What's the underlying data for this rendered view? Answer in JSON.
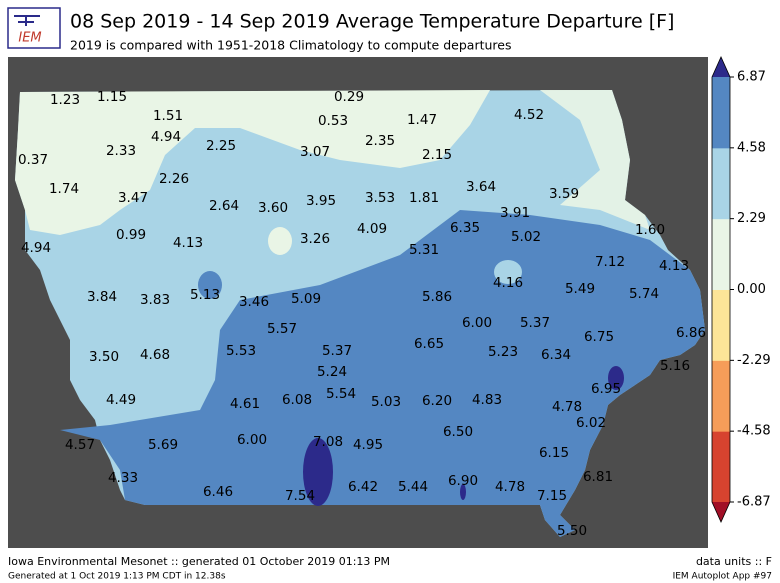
{
  "header": {
    "logo": "IEM",
    "title": "08 Sep 2019 - 14 Sep 2019 Average Temperature Departure [F]",
    "subtitle": "2019 is compared with 1951-2018 Climatology to compute departures"
  },
  "stations": {
    "values": [
      1.23,
      1.15,
      1.51,
      0.29,
      0.53,
      1.47,
      4.52,
      4.94,
      2.33,
      2.25,
      3.07,
      2.35,
      2.15,
      0.37,
      2.26,
      1.74,
      3.47,
      2.64,
      3.6,
      3.95,
      3.53,
      1.81,
      3.64,
      3.59,
      3.91,
      0.99,
      4.13,
      3.26,
      4.09,
      6.35,
      5.02,
      1.6,
      4.94,
      5.31,
      7.12,
      4.13,
      4.16,
      3.84,
      3.83,
      5.13,
      3.46,
      5.09,
      5.86,
      5.49,
      5.74,
      6,
      5.37,
      5.57,
      6.75,
      6.86,
      3.5,
      4.68,
      5.53,
      5.37,
      6.65,
      5.23,
      6.34,
      5.16,
      5.24,
      6.95,
      5.54,
      4.49,
      4.61,
      6.08,
      5.03,
      6.2,
      4.83,
      4.78,
      6.02,
      6.5,
      4.57,
      5.69,
      6,
      7.08,
      4.95,
      6.15,
      4.33,
      6.46,
      6.42,
      5.44,
      6.9,
      4.78,
      6.81,
      7.15,
      7.54,
      5.5
    ],
    "value_labels": [
      "1.23",
      "1.15",
      "1.51",
      "0.29",
      "0.53",
      "1.47",
      "4.52",
      "4.94",
      "2.33",
      "2.25",
      "3.07",
      "2.35",
      "2.15",
      "0.37",
      "2.26",
      "1.74",
      "3.47",
      "2.64",
      "3.60",
      "3.95",
      "3.53",
      "1.81",
      "3.64",
      "3.59",
      "3.91",
      "0.99",
      "4.13",
      "3.26",
      "4.09",
      "6.35",
      "5.02",
      "1.60",
      "4.94",
      "5.31",
      "7.12",
      "4.13",
      "4.16",
      "3.84",
      "3.83",
      "5.13",
      "3.46",
      "5.09",
      "5.86",
      "5.49",
      "5.74",
      "6.00",
      "5.37",
      "5.57",
      "6.75",
      "6.86",
      "3.50",
      "4.68",
      "5.53",
      "5.37",
      "6.65",
      "5.23",
      "6.34",
      "5.16",
      "5.24",
      "6.95",
      "5.54",
      "4.49",
      "4.61",
      "6.08",
      "5.03",
      "6.20",
      "4.83",
      "4.78",
      "6.02",
      "6.50",
      "4.57",
      "5.69",
      "6.00",
      "7.08",
      "4.95",
      "6.15",
      "4.33",
      "6.46",
      "6.42",
      "5.44",
      "6.90",
      "4.78",
      "6.81",
      "7.15",
      "7.54",
      "5.50"
    ]
  },
  "colorbar": {
    "lim": [
      -6.87,
      6.87
    ],
    "ticks": [
      6.87,
      4.58,
      2.29,
      {
        "value": 0,
        "label": "0.00"
      },
      -2.29,
      -4.58,
      -6.87
    ],
    "colors": [
      "#d7432f",
      "#f69d59",
      "#fde598",
      "#e9f5e6",
      "#a9d4e6",
      "#5487c2"
    ],
    "over": "#2c2a8a",
    "under": "#a10f26"
  },
  "footer": {
    "left1": "Iowa Environmental Mesonet :: generated 01 October 2019 01:13 PM",
    "left2": "Generated at 1 Oct 2019 1:13 PM CDT in 12.38s",
    "right1": "data units :: F",
    "right2": "IEM Autoplot App #97"
  }
}
